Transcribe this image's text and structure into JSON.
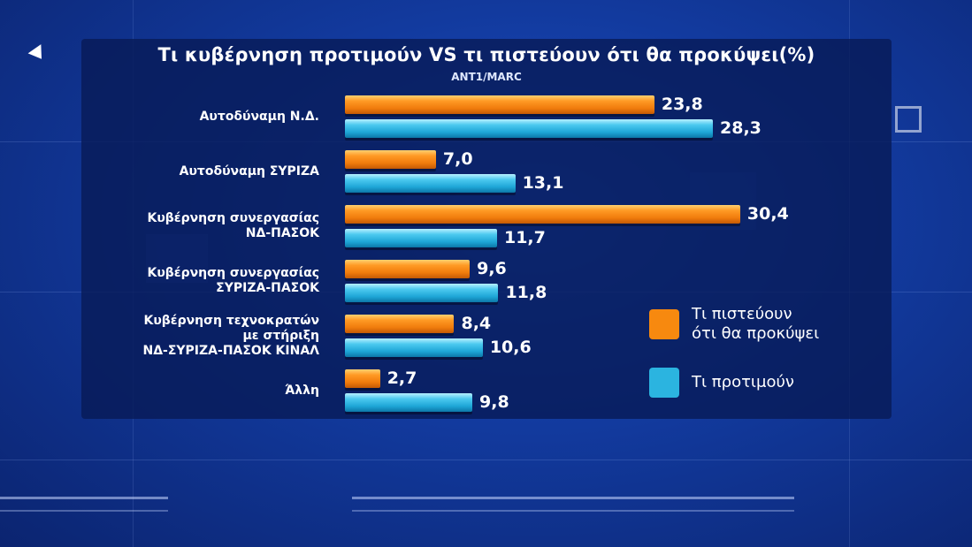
{
  "chart_data": {
    "type": "bar",
    "orientation": "horizontal",
    "title": "Τι κυβέρνηση προτιμούν VS τι πιστεύουν ότι θα προκύψει(%)",
    "subtitle": "ΑΝΤ1/MARC",
    "categories": [
      [
        "Αυτοδύναμη  Ν.Δ."
      ],
      [
        "Αυτοδύναμη ΣΥΡΙΖΑ"
      ],
      [
        "Κυβέρνηση συνεργασίας",
        "ΝΔ-ΠΑΣΟΚ"
      ],
      [
        "Κυβέρνηση συνεργασίας",
        "ΣΥΡΙΖΑ-ΠΑΣΟΚ"
      ],
      [
        "Κυβέρνηση τεχνοκρατών",
        "με στήριξη",
        "ΝΔ-ΣΥΡΙΖΑ-ΠΑΣΟΚ ΚΙΝΑΛ"
      ],
      [
        "Άλλη"
      ]
    ],
    "series": [
      {
        "name": "Τι πιστεύουν ότι θα προκύψει",
        "color": "#f7890f",
        "values": [
          23.8,
          7.0,
          30.4,
          9.6,
          8.4,
          2.7
        ],
        "labels": [
          "23,8",
          "7,0",
          "30,4",
          "9,6",
          "8,4",
          "2,7"
        ]
      },
      {
        "name": "Τι προτιμούν",
        "color": "#2bb4e0",
        "values": [
          28.3,
          13.1,
          11.7,
          11.8,
          10.6,
          9.8
        ],
        "labels": [
          "28,3",
          "13,1",
          "11,7",
          "11,8",
          "10,6",
          "9,8"
        ]
      }
    ],
    "legend": {
      "placement": "right",
      "items": [
        [
          "Τι πιστεύουν",
          "ότι θα προκύψει"
        ],
        [
          "Τι προτιμούν"
        ]
      ]
    }
  }
}
